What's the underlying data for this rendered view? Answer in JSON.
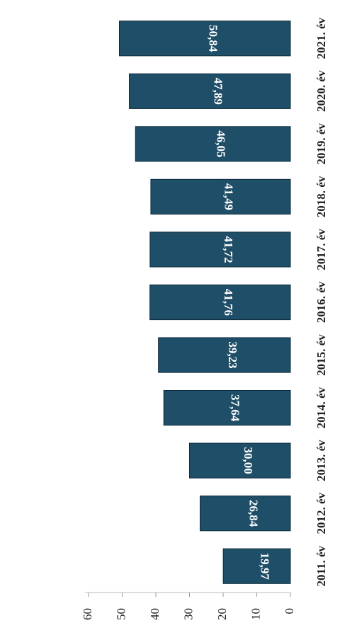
{
  "chart_data": {
    "type": "bar",
    "categories": [
      "2011. év",
      "2012. év",
      "2013. év",
      "2014. év",
      "2015. év",
      "2016. év",
      "2017. év",
      "2018. év",
      "2019. év",
      "2020. év",
      "2021. év"
    ],
    "values": [
      19.97,
      26.84,
      30.0,
      37.64,
      39.23,
      41.76,
      41.72,
      41.49,
      46.05,
      47.89,
      50.84
    ],
    "value_labels": [
      "19,97",
      "26,84",
      "30,00",
      "37,64",
      "39,23",
      "41,76",
      "41,72",
      "41,49",
      "46,05",
      "47,89",
      "50,84"
    ],
    "color": "#1f4e68",
    "ylim": [
      0,
      60
    ],
    "yticks": [
      0,
      10,
      20,
      30,
      40,
      50,
      60
    ]
  }
}
